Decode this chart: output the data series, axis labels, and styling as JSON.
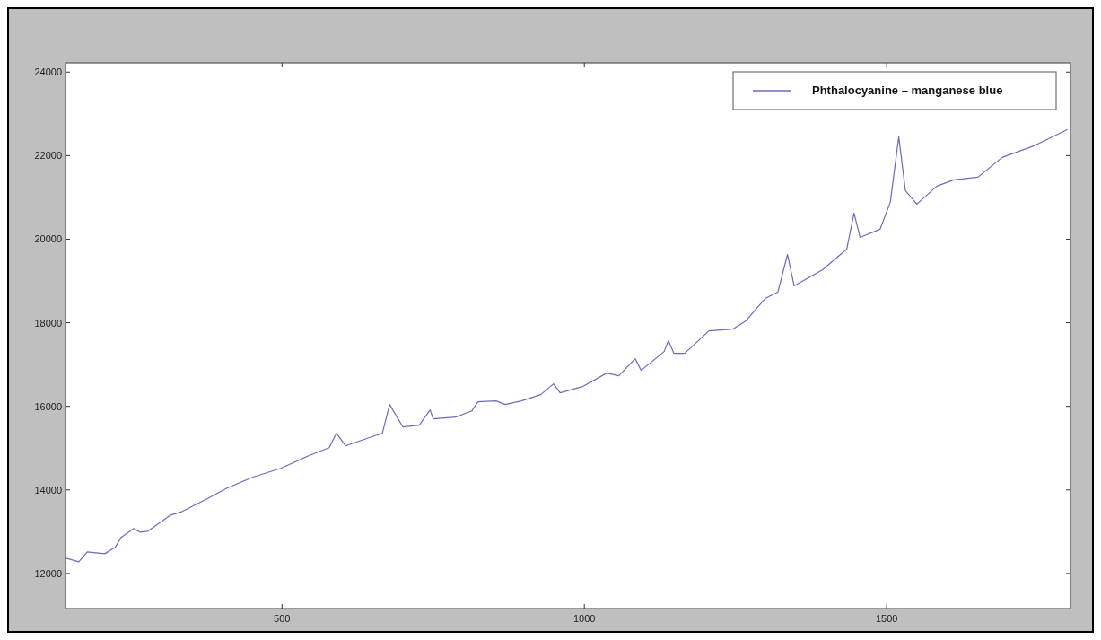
{
  "chart_data": {
    "type": "line",
    "xlim": [
      142,
      1804
    ],
    "ylim": [
      11160,
      24220
    ],
    "xticks": [
      500,
      1000,
      1500
    ],
    "yticks": [
      12000,
      14000,
      16000,
      18000,
      20000,
      22000,
      24000
    ],
    "grid": false,
    "legend": "top right",
    "marker": "none",
    "line_style": "solid",
    "series": [
      {
        "name": "Phthalocyanine – manganese blue",
        "color": "#6a6ac4",
        "x": [
          143,
          164,
          178,
          207,
          224,
          234,
          255,
          265,
          278,
          316,
          335,
          376,
          409,
          451,
          498,
          544,
          578,
          590,
          605,
          639,
          666,
          678,
          700,
          727,
          745,
          750,
          787,
          814,
          824,
          854,
          869,
          896,
          928,
          949,
          960,
          997,
          1037,
          1057,
          1084,
          1094,
          1132,
          1139,
          1148,
          1166,
          1206,
          1246,
          1267,
          1299,
          1320,
          1336,
          1347,
          1394,
          1434,
          1446,
          1456,
          1489,
          1506,
          1520,
          1531,
          1550,
          1583,
          1611,
          1651,
          1691,
          1744,
          1799
        ],
        "values": [
          12366,
          12280,
          12516,
          12473,
          12624,
          12860,
          13075,
          12989,
          13011,
          13398,
          13484,
          13785,
          14043,
          14301,
          14516,
          14817,
          15011,
          15355,
          15054,
          15226,
          15355,
          16043,
          15505,
          15548,
          15914,
          15699,
          15742,
          15892,
          16108,
          16129,
          16043,
          16129,
          16280,
          16538,
          16323,
          16473,
          16796,
          16731,
          17140,
          16860,
          17312,
          17570,
          17269,
          17269,
          17806,
          17849,
          18043,
          18581,
          18731,
          19634,
          18882,
          19269,
          19763,
          20624,
          20043,
          20237,
          20882,
          22452,
          21161,
          20839,
          21269,
          21419,
          21484,
          21957,
          22237,
          22624
        ]
      }
    ]
  }
}
